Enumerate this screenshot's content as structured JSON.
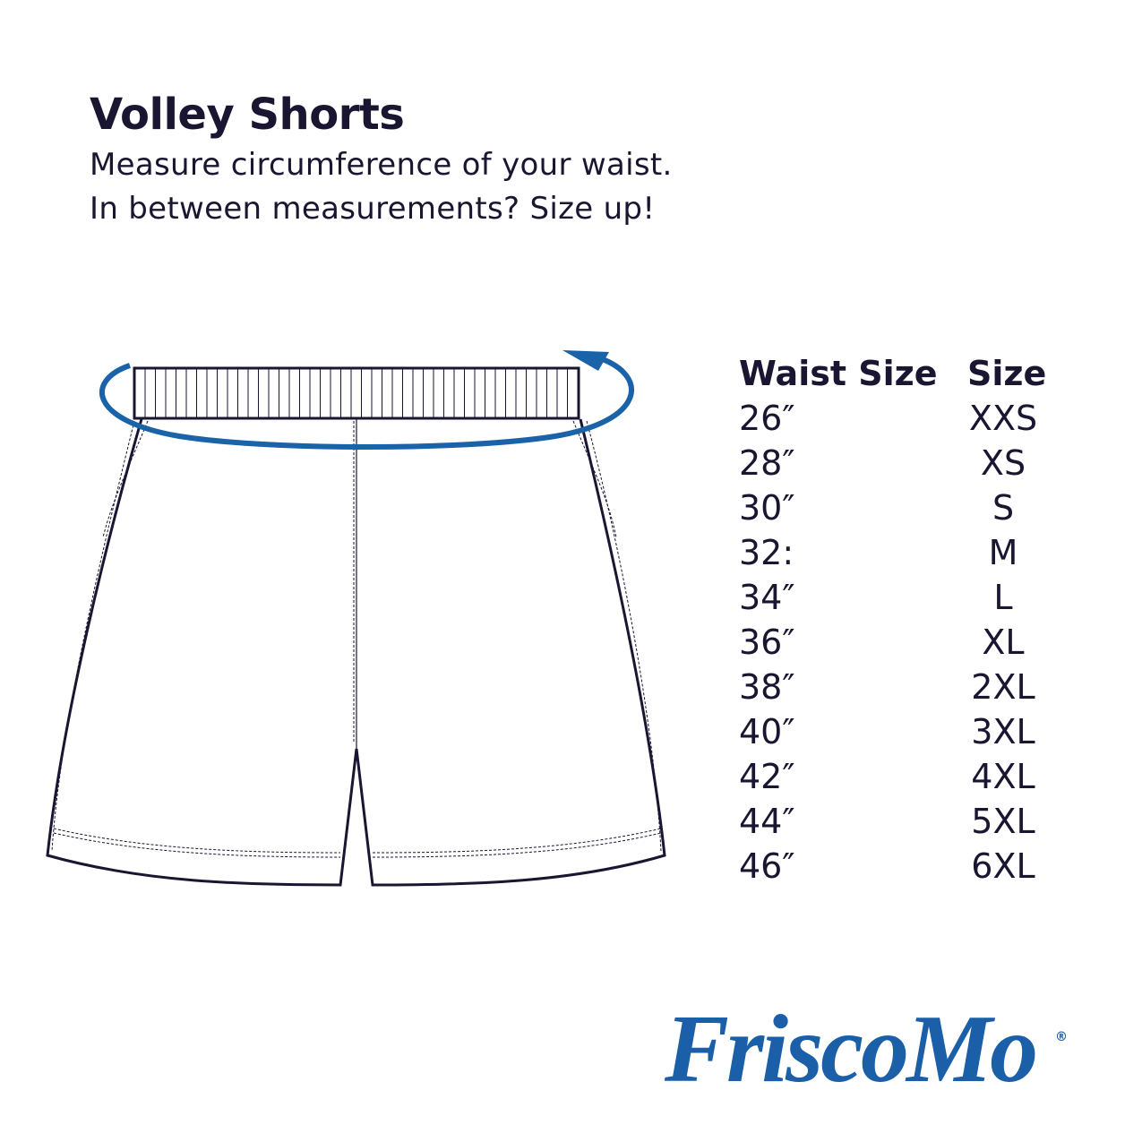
{
  "header": {
    "title": "Volley Shorts",
    "line1": "Measure circumference of your waist.",
    "line2": "In between measurements? Size up!"
  },
  "colors": {
    "accent": "#1a63a8",
    "text": "#1a1530"
  },
  "table": {
    "headers": {
      "waist": "Waist Size",
      "size": "Size"
    },
    "rows": [
      {
        "waist": "26″",
        "size": "XXS"
      },
      {
        "waist": "28″",
        "size": "XS"
      },
      {
        "waist": "30″",
        "size": "S"
      },
      {
        "waist": "32:",
        "size": "M"
      },
      {
        "waist": "34″",
        "size": "L"
      },
      {
        "waist": "36″",
        "size": "XL"
      },
      {
        "waist": "38″",
        "size": "2XL"
      },
      {
        "waist": "40″",
        "size": "3XL"
      },
      {
        "waist": "42″",
        "size": "4XL"
      },
      {
        "waist": "44″",
        "size": "5XL"
      },
      {
        "waist": "46″",
        "size": "6XL"
      }
    ]
  },
  "logo": {
    "text": "FriscoMo",
    "registered": "®"
  }
}
